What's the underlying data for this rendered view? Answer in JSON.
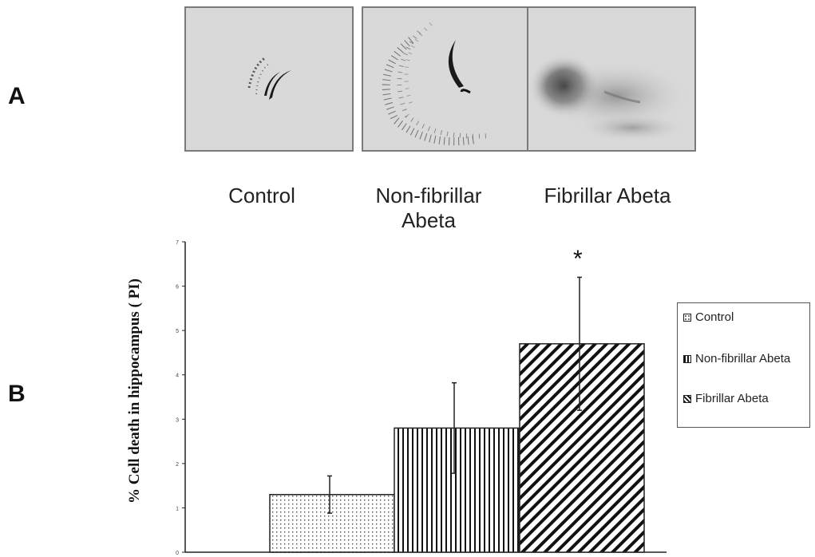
{
  "panel_a": {
    "letter": "A",
    "panels": [
      {
        "caption": "Control"
      },
      {
        "caption": "Non-fibrillar\nAbeta"
      },
      {
        "caption": "Fibrillar Abeta"
      }
    ]
  },
  "panel_b": {
    "letter": "B",
    "significance_marker": "*"
  },
  "chart_data": {
    "type": "bar",
    "categories": [
      "Control",
      "Non-fibrillar Abeta",
      "Fibrillar Abeta"
    ],
    "values": [
      1.3,
      2.8,
      4.7
    ],
    "errors": [
      0.42,
      1.02,
      1.5
    ],
    "ylabel": "% Cell death in hippocampus ( PI)",
    "xlabel": "",
    "ylim": [
      0,
      7
    ],
    "yticks": [
      "0",
      "1",
      "2",
      "3",
      "4",
      "5",
      "6",
      "7"
    ],
    "legend": [
      "Control",
      "Non-fibrillar Abeta",
      "Fibrillar Abeta"
    ],
    "legend_position": "right",
    "patterns": [
      "dots",
      "vertical-lines",
      "diagonal-lines"
    ],
    "bar_stroke_color": "#222222",
    "grid": false
  }
}
